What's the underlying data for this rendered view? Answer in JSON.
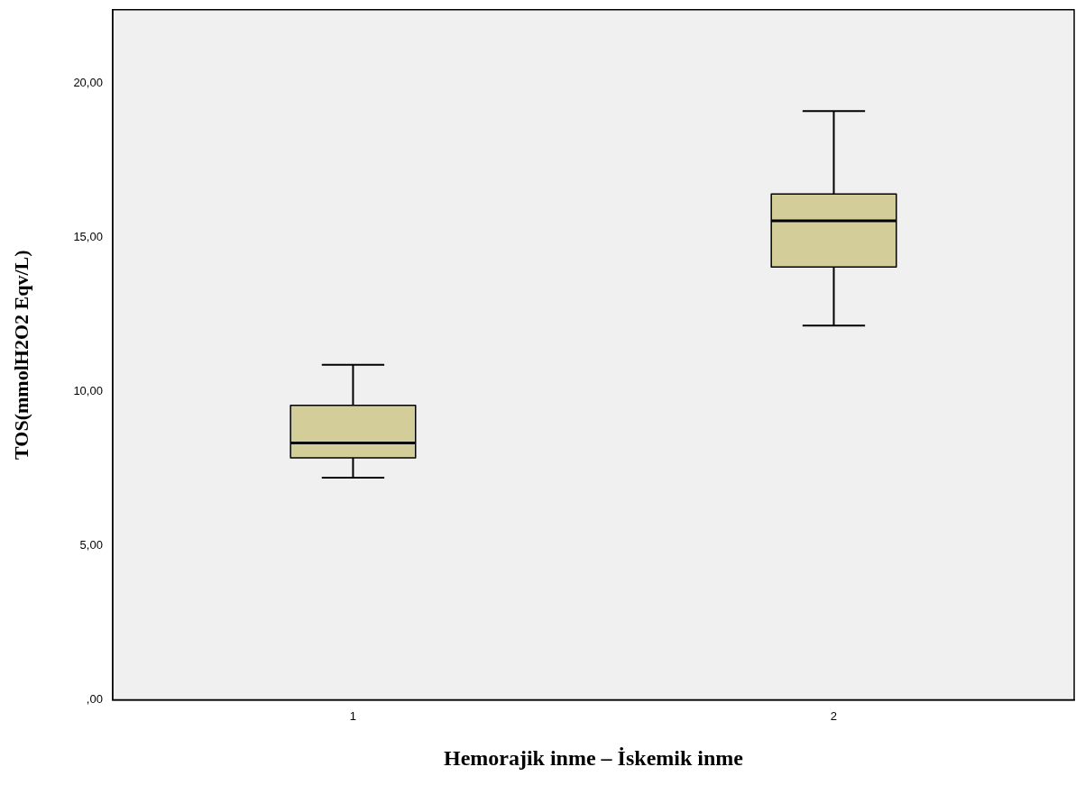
{
  "chart_data": {
    "type": "box",
    "xlabel": "Hemorajik inme – İskemik inme",
    "ylabel": "TOS(mmolH2O2 Eqv/L)",
    "categories": [
      "1",
      "2"
    ],
    "color": "#d3ce99",
    "boxes": [
      {
        "low": 7.21,
        "q1": 7.86,
        "median": 8.34,
        "q3": 9.56,
        "high": 10.88
      },
      {
        "low": 12.15,
        "q1": 14.05,
        "median": 15.55,
        "q3": 16.42,
        "high": 19.11
      }
    ],
    "ylim": [
      0,
      22.4
    ],
    "yticks": [
      {
        "value": 0,
        "label": ",00"
      },
      {
        "value": 5,
        "label": "5,00"
      },
      {
        "value": 10,
        "label": "10,00"
      },
      {
        "value": 15,
        "label": "15,00"
      },
      {
        "value": 20,
        "label": "20,00"
      }
    ],
    "grid": false,
    "legend": false
  }
}
